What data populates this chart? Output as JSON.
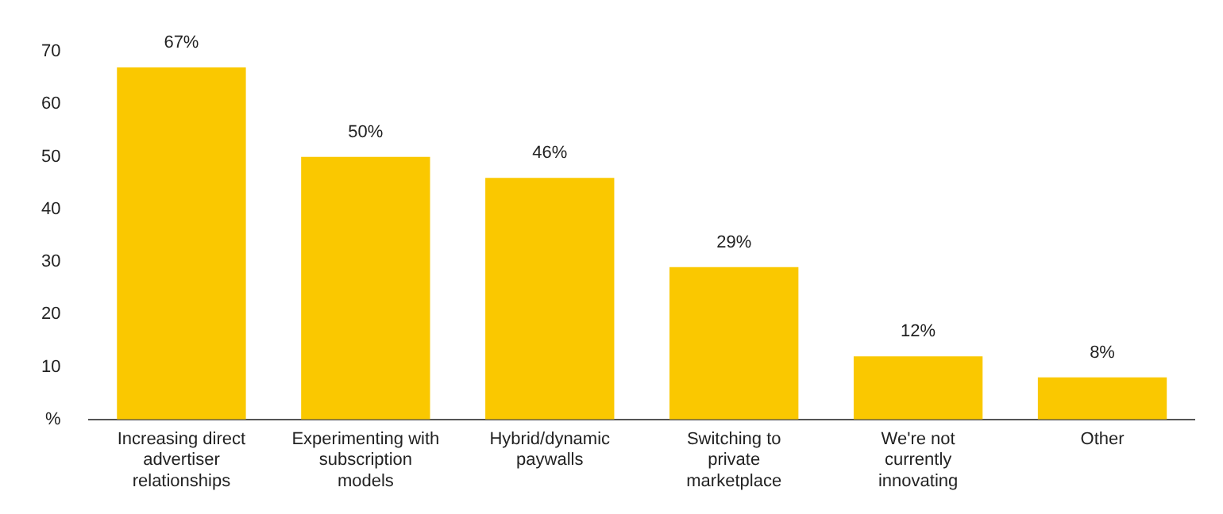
{
  "chart_data": {
    "type": "bar",
    "categories": [
      "Increasing direct advertiser relationships",
      "Experimenting with subscription models",
      "Hybrid/dynamic paywalls",
      "Switching to private marketplace",
      "We're not currently innovating",
      "Other"
    ],
    "values": [
      67,
      50,
      46,
      29,
      12,
      8
    ],
    "value_labels": [
      "67%",
      "50%",
      "46%",
      "29%",
      "12%",
      "8%"
    ],
    "color": "#fac800",
    "ylim": [
      0,
      70
    ],
    "yticks": [
      {
        "value": 0,
        "label": "%"
      },
      10,
      20,
      30,
      40,
      50,
      60,
      70
    ],
    "grid": false,
    "legend": false
  }
}
